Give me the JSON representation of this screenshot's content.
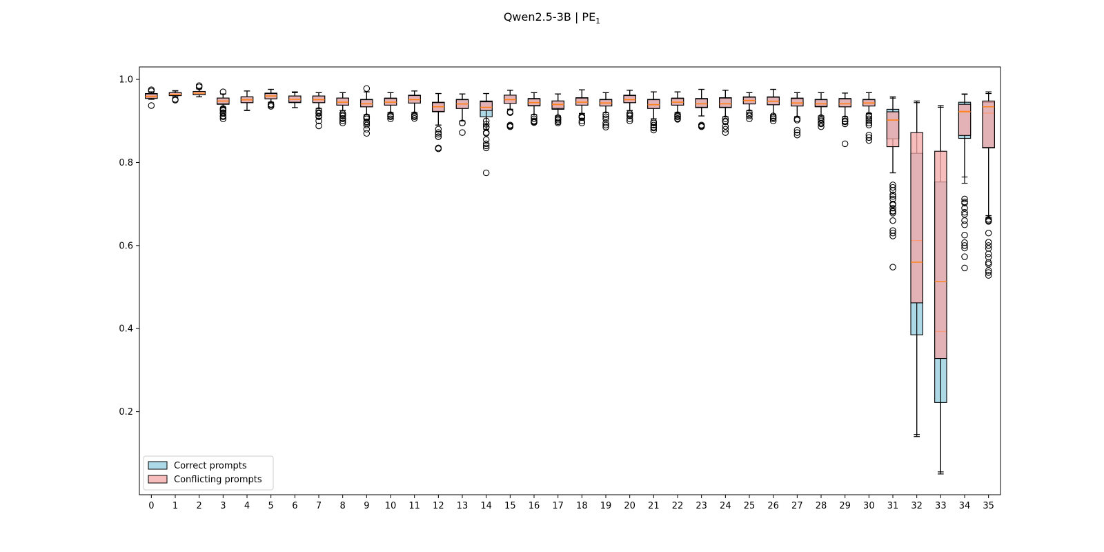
{
  "chart_data": {
    "type": "boxplot",
    "title": "Qwen2.5-3B | PE",
    "title_subscript": "1",
    "xlabel": "",
    "ylabel": "",
    "ylim": [
      0.0,
      1.03
    ],
    "yticks": [
      0.2,
      0.4,
      0.6,
      0.8,
      1.0
    ],
    "ytick_labels": [
      "0.2",
      "0.4",
      "0.6",
      "0.8",
      "1.0"
    ],
    "grid": false,
    "legend_position": "lower-left",
    "categories": [
      "0",
      "1",
      "2",
      "3",
      "4",
      "5",
      "6",
      "7",
      "8",
      "9",
      "10",
      "11",
      "12",
      "13",
      "14",
      "15",
      "16",
      "17",
      "18",
      "19",
      "20",
      "21",
      "22",
      "23",
      "24",
      "25",
      "26",
      "27",
      "28",
      "29",
      "30",
      "31",
      "32",
      "33",
      "34",
      "35"
    ],
    "series": [
      {
        "name": "Correct prompts",
        "color": "#add8e6",
        "median_color": "#ff7f0e",
        "boxes": [
          {
            "whislo": 0.952,
            "q1": 0.955,
            "med": 0.96,
            "q3": 0.966,
            "whishi": 0.97,
            "fliers": [
              0.937,
              0.972
            ]
          },
          {
            "whislo": 0.958,
            "q1": 0.961,
            "med": 0.965,
            "q3": 0.968,
            "whishi": 0.973,
            "fliers": [
              0.95
            ]
          },
          {
            "whislo": 0.958,
            "q1": 0.963,
            "med": 0.967,
            "q3": 0.971,
            "whishi": 0.977,
            "fliers": [
              0.982
            ]
          },
          {
            "whislo": 0.933,
            "q1": 0.94,
            "med": 0.947,
            "q3": 0.955,
            "whishi": 0.965,
            "fliers": [
              0.93,
              0.925,
              0.92,
              0.91,
              0.905,
              0.97
            ]
          },
          {
            "whislo": 0.925,
            "q1": 0.944,
            "med": 0.95,
            "q3": 0.958,
            "whishi": 0.972,
            "fliers": []
          },
          {
            "whislo": 0.945,
            "q1": 0.954,
            "med": 0.96,
            "q3": 0.967,
            "whishi": 0.976,
            "fliers": [
              0.94,
              0.935
            ]
          },
          {
            "whislo": 0.932,
            "q1": 0.944,
            "med": 0.952,
            "q3": 0.96,
            "whishi": 0.97,
            "fliers": []
          },
          {
            "whislo": 0.93,
            "q1": 0.944,
            "med": 0.952,
            "q3": 0.96,
            "whishi": 0.968,
            "fliers": [
              0.925,
              0.918,
              0.91,
              0.9,
              0.888
            ]
          },
          {
            "whislo": 0.925,
            "q1": 0.938,
            "med": 0.946,
            "q3": 0.955,
            "whishi": 0.968,
            "fliers": [
              0.918,
              0.912,
              0.906,
              0.9,
              0.895
            ]
          },
          {
            "whislo": 0.915,
            "q1": 0.934,
            "med": 0.942,
            "q3": 0.952,
            "whishi": 0.97,
            "fliers": [
              0.91,
              0.905,
              0.898,
              0.89,
              0.88,
              0.87,
              0.978
            ]
          },
          {
            "whislo": 0.92,
            "q1": 0.938,
            "med": 0.946,
            "q3": 0.955,
            "whishi": 0.968,
            "fliers": [
              0.915,
              0.91,
              0.905
            ]
          },
          {
            "whislo": 0.92,
            "q1": 0.943,
            "med": 0.952,
            "q3": 0.962,
            "whishi": 0.972,
            "fliers": [
              0.915,
              0.91,
              0.906
            ]
          },
          {
            "whislo": 0.89,
            "q1": 0.922,
            "med": 0.935,
            "q3": 0.945,
            "whishi": 0.966,
            "fliers": [
              0.88,
              0.868,
              0.862,
              0.835,
              0.833
            ]
          },
          {
            "whislo": 0.9,
            "q1": 0.93,
            "med": 0.94,
            "q3": 0.952,
            "whishi": 0.965,
            "fliers": [
              0.895,
              0.872
            ]
          },
          {
            "whislo": 0.88,
            "q1": 0.91,
            "med": 0.932,
            "q3": 0.948,
            "whishi": 0.966,
            "fliers": [
              0.9,
              0.892,
              0.885,
              0.872,
              0.855,
              0.845,
              0.835,
              0.775
            ]
          },
          {
            "whislo": 0.928,
            "q1": 0.942,
            "med": 0.952,
            "q3": 0.962,
            "whishi": 0.974,
            "fliers": [
              0.92,
              0.89,
              0.886
            ]
          },
          {
            "whislo": 0.915,
            "q1": 0.936,
            "med": 0.945,
            "q3": 0.954,
            "whishi": 0.968,
            "fliers": [
              0.91,
              0.9,
              0.896
            ]
          },
          {
            "whislo": 0.912,
            "q1": 0.928,
            "med": 0.938,
            "q3": 0.948,
            "whishi": 0.965,
            "fliers": [
              0.908,
              0.902,
              0.895
            ]
          },
          {
            "whislo": 0.918,
            "q1": 0.938,
            "med": 0.946,
            "q3": 0.956,
            "whishi": 0.975,
            "fliers": [
              0.912,
              0.908,
              0.895
            ]
          },
          {
            "whislo": 0.92,
            "q1": 0.936,
            "med": 0.944,
            "q3": 0.952,
            "whishi": 0.968,
            "fliers": [
              0.915,
              0.905,
              0.895,
              0.885
            ]
          },
          {
            "whislo": 0.925,
            "q1": 0.944,
            "med": 0.952,
            "q3": 0.962,
            "whishi": 0.974,
            "fliers": [
              0.918,
              0.912,
              0.9
            ]
          },
          {
            "whislo": 0.905,
            "q1": 0.93,
            "med": 0.94,
            "q3": 0.952,
            "whishi": 0.97,
            "fliers": [
              0.898,
              0.89,
              0.883,
              0.878
            ]
          },
          {
            "whislo": 0.92,
            "q1": 0.938,
            "med": 0.946,
            "q3": 0.955,
            "whishi": 0.97,
            "fliers": [
              0.915,
              0.91,
              0.904
            ]
          },
          {
            "whislo": 0.912,
            "q1": 0.932,
            "med": 0.942,
            "q3": 0.954,
            "whishi": 0.976,
            "fliers": [
              0.89,
              0.886
            ]
          },
          {
            "whislo": 0.91,
            "q1": 0.932,
            "med": 0.942,
            "q3": 0.956,
            "whishi": 0.974,
            "fliers": [
              0.905,
              0.898,
              0.887,
              0.872
            ]
          },
          {
            "whislo": 0.925,
            "q1": 0.941,
            "med": 0.95,
            "q3": 0.958,
            "whishi": 0.968,
            "fliers": [
              0.92,
              0.915,
              0.905
            ]
          },
          {
            "whislo": 0.915,
            "q1": 0.939,
            "med": 0.948,
            "q3": 0.958,
            "whishi": 0.976,
            "fliers": [
              0.912,
              0.905,
              0.9
            ]
          },
          {
            "whislo": 0.91,
            "q1": 0.936,
            "med": 0.944,
            "q3": 0.955,
            "whishi": 0.968,
            "fliers": [
              0.905,
              0.878,
              0.866
            ]
          },
          {
            "whislo": 0.912,
            "q1": 0.934,
            "med": 0.942,
            "q3": 0.952,
            "whishi": 0.968,
            "fliers": [
              0.908,
              0.9,
              0.893,
              0.886
            ]
          },
          {
            "whislo": 0.91,
            "q1": 0.934,
            "med": 0.942,
            "q3": 0.954,
            "whishi": 0.967,
            "fliers": [
              0.905,
              0.9,
              0.893,
              0.845
            ]
          },
          {
            "whislo": 0.918,
            "q1": 0.936,
            "med": 0.944,
            "q3": 0.952,
            "whishi": 0.968,
            "fliers": [
              0.914,
              0.91,
              0.9,
              0.89,
              0.866,
              0.853
            ]
          },
          {
            "whislo": 0.775,
            "q1": 0.857,
            "med": 0.903,
            "q3": 0.928,
            "whishi": 0.955,
            "fliers": [
              0.746,
              0.733,
              0.722,
              0.712,
              0.7,
              0.69,
              0.683,
              0.678,
              0.66,
              0.636,
              0.623,
              0.548
            ]
          },
          {
            "whislo": 0.14,
            "q1": 0.385,
            "med": 0.612,
            "q3": 0.822,
            "whishi": 0.944,
            "fliers": []
          },
          {
            "whislo": 0.05,
            "q1": 0.222,
            "med": 0.393,
            "q3": 0.753,
            "whishi": 0.933,
            "fliers": []
          },
          {
            "whislo": 0.765,
            "q1": 0.858,
            "med": 0.924,
            "q3": 0.945,
            "whishi": 0.964,
            "fliers": [
              0.712,
              0.702,
              0.69,
              0.675,
              0.66,
              0.625,
              0.607,
              0.594,
              0.573,
              0.546
            ]
          },
          {
            "whislo": 0.668,
            "q1": 0.835,
            "med": 0.919,
            "q3": 0.945,
            "whishi": 0.966,
            "fliers": [
              0.663,
              0.66,
              0.63,
              0.608,
              0.593,
              0.58,
              0.572,
              0.559,
              0.54,
              0.528
            ]
          }
        ]
      },
      {
        "name": "Conflicting prompts",
        "color": "#f4a6a6",
        "median_color": "#ff7f0e",
        "boxes": [
          {
            "whislo": 0.952,
            "q1": 0.954,
            "med": 0.959,
            "q3": 0.965,
            "whishi": 0.97,
            "fliers": [
              0.975
            ]
          },
          {
            "whislo": 0.958,
            "q1": 0.961,
            "med": 0.964,
            "q3": 0.968,
            "whishi": 0.972,
            "fliers": [
              0.952
            ]
          },
          {
            "whislo": 0.958,
            "q1": 0.963,
            "med": 0.967,
            "q3": 0.971,
            "whishi": 0.977,
            "fliers": [
              0.985
            ]
          },
          {
            "whislo": 0.933,
            "q1": 0.941,
            "med": 0.948,
            "q3": 0.955,
            "whishi": 0.965,
            "fliers": [
              0.928,
              0.918,
              0.912
            ]
          },
          {
            "whislo": 0.926,
            "q1": 0.944,
            "med": 0.951,
            "q3": 0.958,
            "whishi": 0.972,
            "fliers": []
          },
          {
            "whislo": 0.945,
            "q1": 0.953,
            "med": 0.96,
            "q3": 0.966,
            "whishi": 0.976,
            "fliers": [
              0.938
            ]
          },
          {
            "whislo": 0.932,
            "q1": 0.945,
            "med": 0.952,
            "q3": 0.96,
            "whishi": 0.968,
            "fliers": []
          },
          {
            "whislo": 0.93,
            "q1": 0.944,
            "med": 0.951,
            "q3": 0.96,
            "whishi": 0.968,
            "fliers": [
              0.92,
              0.912
            ]
          },
          {
            "whislo": 0.925,
            "q1": 0.938,
            "med": 0.945,
            "q3": 0.955,
            "whishi": 0.968,
            "fliers": [
              0.915,
              0.905
            ]
          },
          {
            "whislo": 0.915,
            "q1": 0.934,
            "med": 0.941,
            "q3": 0.951,
            "whishi": 0.97,
            "fliers": [
              0.908,
              0.895
            ]
          },
          {
            "whislo": 0.92,
            "q1": 0.938,
            "med": 0.945,
            "q3": 0.954,
            "whishi": 0.968,
            "fliers": [
              0.912
            ]
          },
          {
            "whislo": 0.92,
            "q1": 0.943,
            "med": 0.951,
            "q3": 0.961,
            "whishi": 0.972,
            "fliers": [
              0.912
            ]
          },
          {
            "whislo": 0.89,
            "q1": 0.923,
            "med": 0.934,
            "q3": 0.944,
            "whishi": 0.966,
            "fliers": [
              0.872,
              0.862
            ]
          },
          {
            "whislo": 0.9,
            "q1": 0.93,
            "med": 0.941,
            "q3": 0.951,
            "whishi": 0.965,
            "fliers": [
              0.895
            ]
          },
          {
            "whislo": 0.89,
            "q1": 0.925,
            "med": 0.933,
            "q3": 0.946,
            "whishi": 0.966,
            "fliers": [
              0.885,
              0.87,
              0.84
            ]
          },
          {
            "whislo": 0.928,
            "q1": 0.942,
            "med": 0.951,
            "q3": 0.962,
            "whishi": 0.974,
            "fliers": [
              0.922,
              0.888
            ]
          },
          {
            "whislo": 0.915,
            "q1": 0.937,
            "med": 0.944,
            "q3": 0.953,
            "whishi": 0.968,
            "fliers": [
              0.905,
              0.898
            ]
          },
          {
            "whislo": 0.912,
            "q1": 0.93,
            "med": 0.94,
            "q3": 0.948,
            "whishi": 0.965,
            "fliers": [
              0.905,
              0.898
            ]
          },
          {
            "whislo": 0.918,
            "q1": 0.938,
            "med": 0.945,
            "q3": 0.955,
            "whishi": 0.975,
            "fliers": [
              0.91,
              0.9
            ]
          },
          {
            "whislo": 0.92,
            "q1": 0.936,
            "med": 0.943,
            "q3": 0.951,
            "whishi": 0.968,
            "fliers": [
              0.91,
              0.89
            ]
          },
          {
            "whislo": 0.925,
            "q1": 0.944,
            "med": 0.951,
            "q3": 0.961,
            "whishi": 0.974,
            "fliers": [
              0.915,
              0.905
            ]
          },
          {
            "whislo": 0.905,
            "q1": 0.93,
            "med": 0.939,
            "q3": 0.951,
            "whishi": 0.97,
            "fliers": [
              0.895,
              0.885
            ]
          },
          {
            "whislo": 0.92,
            "q1": 0.938,
            "med": 0.945,
            "q3": 0.954,
            "whishi": 0.97,
            "fliers": [
              0.912,
              0.906
            ]
          },
          {
            "whislo": 0.912,
            "q1": 0.933,
            "med": 0.941,
            "q3": 0.953,
            "whishi": 0.976,
            "fliers": [
              0.888
            ]
          },
          {
            "whislo": 0.91,
            "q1": 0.933,
            "med": 0.941,
            "q3": 0.955,
            "whishi": 0.974,
            "fliers": [
              0.9,
              0.88
            ]
          },
          {
            "whislo": 0.925,
            "q1": 0.941,
            "med": 0.949,
            "q3": 0.957,
            "whishi": 0.968,
            "fliers": [
              0.912
            ]
          },
          {
            "whislo": 0.915,
            "q1": 0.939,
            "med": 0.947,
            "q3": 0.957,
            "whishi": 0.976,
            "fliers": [
              0.908
            ]
          },
          {
            "whislo": 0.91,
            "q1": 0.936,
            "med": 0.943,
            "q3": 0.954,
            "whishi": 0.968,
            "fliers": [
              0.902,
              0.872
            ]
          },
          {
            "whislo": 0.912,
            "q1": 0.935,
            "med": 0.941,
            "q3": 0.951,
            "whishi": 0.968,
            "fliers": [
              0.903,
              0.895
            ]
          },
          {
            "whislo": 0.91,
            "q1": 0.934,
            "med": 0.941,
            "q3": 0.953,
            "whishi": 0.967,
            "fliers": [
              0.898
            ]
          },
          {
            "whislo": 0.918,
            "q1": 0.936,
            "med": 0.943,
            "q3": 0.951,
            "whishi": 0.968,
            "fliers": [
              0.905,
              0.895,
              0.86
            ]
          },
          {
            "whislo": 0.775,
            "q1": 0.838,
            "med": 0.902,
            "q3": 0.922,
            "whishi": 0.958,
            "fliers": [
              0.74,
              0.718,
              0.698,
              0.682,
              0.63
            ]
          },
          {
            "whislo": 0.145,
            "q1": 0.462,
            "med": 0.56,
            "q3": 0.872,
            "whishi": 0.948,
            "fliers": []
          },
          {
            "whislo": 0.055,
            "q1": 0.328,
            "med": 0.513,
            "q3": 0.827,
            "whishi": 0.937,
            "fliers": []
          },
          {
            "whislo": 0.75,
            "q1": 0.865,
            "med": 0.922,
            "q3": 0.94,
            "whishi": 0.965,
            "fliers": [
              0.705,
              0.68,
              0.65,
              0.6
            ]
          },
          {
            "whislo": 0.672,
            "q1": 0.836,
            "med": 0.934,
            "q3": 0.948,
            "whishi": 0.97,
            "fliers": [
              0.658,
              0.6,
              0.555,
              0.535
            ]
          }
        ]
      }
    ]
  }
}
